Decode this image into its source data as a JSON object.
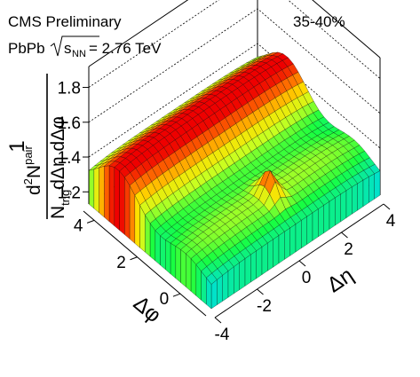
{
  "header": {
    "experiment": "CMS Preliminary",
    "system": "PbPb",
    "energy_symbol": "s",
    "energy_subscript": "NN",
    "energy_value": " = 2.76 TeV",
    "centrality": "35-40%"
  },
  "chart_data": {
    "type": "surface",
    "title": "",
    "zlabel": {
      "frac": "1",
      "denom": "N",
      "denom_sub": "trig",
      "denom_rest": "dΔη dΔφ",
      "num": "d",
      "num_sup": "2",
      "num_rest": "N",
      "num_sup2": "pair"
    },
    "xlabel": "Δη",
    "ylabel": "Δφ",
    "x_ticks": [
      "-4",
      "-2",
      "0",
      "2",
      "4"
    ],
    "y_ticks": [
      "0",
      "2",
      "4"
    ],
    "z_ticks": [
      "1.2",
      "1.4",
      "1.6",
      "1.8"
    ],
    "xlim": [
      -4,
      4
    ],
    "ylim": [
      -1.2,
      4.5
    ],
    "zlim": [
      1.13,
      1.92
    ],
    "baseline": 1.26,
    "ridge_near_side_amplitude": 0.08,
    "ridge_away_side_amplitude": 0.23,
    "near_side_peak_height": 0.13,
    "colormap": [
      "#1a23a8",
      "#2a7de0",
      "#00e0d0",
      "#18ff40",
      "#c8ff20",
      "#ffe000",
      "#ff7000",
      "#ee0000"
    ],
    "grid": true
  }
}
